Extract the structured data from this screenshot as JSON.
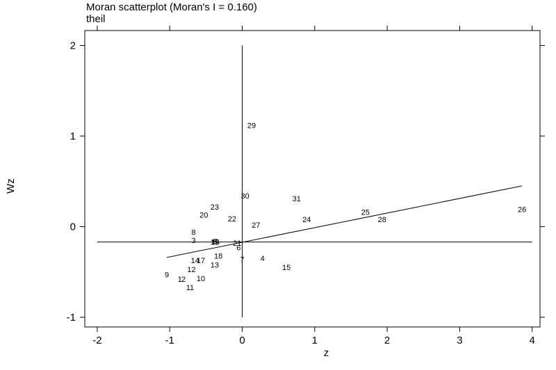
{
  "chart_data": {
    "type": "scatter",
    "title": "Moran scatterplot (Moran's I = 0.160)",
    "subtitle": "theil",
    "xlabel": "z",
    "ylabel": "Wz",
    "xlim": [
      -2.1,
      4.1
    ],
    "ylim": [
      -1.1,
      2.1
    ],
    "xticks": [
      -2,
      -1,
      0,
      1,
      2,
      3,
      4
    ],
    "yticks": [
      -1,
      0,
      1,
      2
    ],
    "points": [
      {
        "label": "1",
        "x": -0.86,
        "y": -0.58
      },
      {
        "label": "2",
        "x": -0.81,
        "y": -0.58
      },
      {
        "label": "3",
        "x": -0.67,
        "y": -0.15
      },
      {
        "label": "4",
        "x": 0.28,
        "y": -0.35
      },
      {
        "label": "5",
        "x": -0.37,
        "y": -0.16
      },
      {
        "label": "6",
        "x": -0.05,
        "y": -0.23
      },
      {
        "label": "7",
        "x": 0.0,
        "y": -0.36
      },
      {
        "label": "8",
        "x": -0.67,
        "y": -0.06
      },
      {
        "label": "9",
        "x": -1.04,
        "y": -0.53
      },
      {
        "label": "10",
        "x": -0.57,
        "y": -0.57
      },
      {
        "label": "11",
        "x": -0.72,
        "y": -0.67
      },
      {
        "label": "12",
        "x": -0.7,
        "y": -0.47
      },
      {
        "label": "13",
        "x": -0.38,
        "y": -0.42
      },
      {
        "label": "14",
        "x": -0.65,
        "y": -0.37
      },
      {
        "label": "15",
        "x": 0.61,
        "y": -0.45
      },
      {
        "label": "16",
        "x": -0.37,
        "y": -0.17
      },
      {
        "label": "17",
        "x": -0.57,
        "y": -0.37
      },
      {
        "label": "18",
        "x": -0.33,
        "y": -0.32
      },
      {
        "label": "19",
        "x": -0.38,
        "y": -0.17
      },
      {
        "label": "20",
        "x": -0.53,
        "y": 0.13
      },
      {
        "label": "21",
        "x": -0.07,
        "y": -0.18
      },
      {
        "label": "22",
        "x": -0.14,
        "y": 0.09
      },
      {
        "label": "23",
        "x": -0.38,
        "y": 0.22
      },
      {
        "label": "24",
        "x": 0.89,
        "y": 0.08
      },
      {
        "label": "25",
        "x": 1.7,
        "y": 0.16
      },
      {
        "label": "26",
        "x": 3.86,
        "y": 0.19
      },
      {
        "label": "27",
        "x": 0.19,
        "y": 0.02
      },
      {
        "label": "28",
        "x": 1.93,
        "y": 0.08
      },
      {
        "label": "29",
        "x": 0.13,
        "y": 1.12
      },
      {
        "label": "30",
        "x": 0.04,
        "y": 0.34
      },
      {
        "label": "31",
        "x": 0.75,
        "y": 0.31
      }
    ],
    "regression_line": {
      "x": [
        -1.04,
        3.86
      ],
      "y": [
        -0.34,
        0.45
      ]
    },
    "reference_lines": {
      "x": 0,
      "x_span": [
        -1.0,
        2.0
      ],
      "y": -0.17,
      "y_span": [
        -2.0,
        4.0
      ]
    },
    "grid": false,
    "legend": "none"
  }
}
